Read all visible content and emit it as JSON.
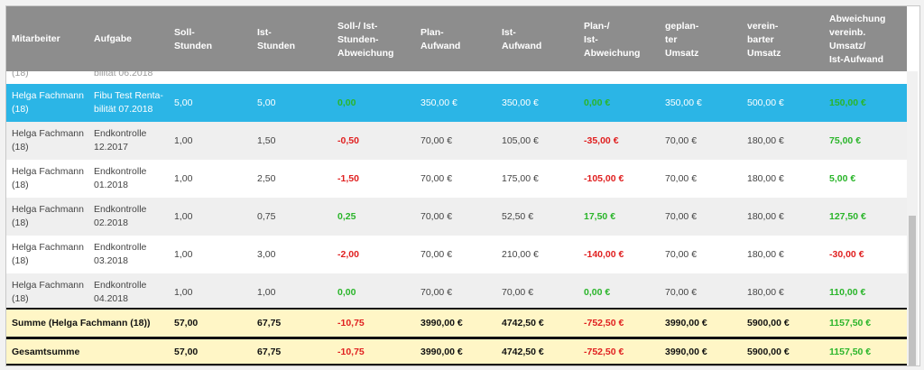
{
  "headers": [
    "Mitarbeiter",
    "Aufgabe",
    "Soll-\nStunden",
    "Ist-\nStunden",
    "Soll-/ Ist-\nStunden-\nAbweichung",
    "Plan-\nAufwand",
    "Ist-\nAufwand",
    "Plan-/\nIst-\nAbweichung",
    "geplan-\nter\nUmsatz",
    "verein-\nbarter\nUmsatz",
    "Abweichung\nvereinb.\nUmsatz/\nIst-Aufwand"
  ],
  "partial_row": {
    "mitarbeiter": "(18)",
    "aufgabe": "bilität 06.2018"
  },
  "rows": [
    {
      "mitarbeiter": "Helga Fachmann\n(18)",
      "aufgabe": "Fibu Test Renta-\nbilität 07.2018",
      "soll": "5,00",
      "ist": "5,00",
      "abw": "0,00",
      "plan": "350,00 €",
      "ist_aufwand": "350,00 €",
      "plan_abw": "0,00 €",
      "gepl_umsatz": "350,00 €",
      "ver_umsatz": "500,00 €",
      "abw_umsatz": "150,00 €",
      "selected": true,
      "abw_sign": "pos",
      "plan_abw_sign": "pos",
      "abw_umsatz_sign": "pos"
    },
    {
      "mitarbeiter": "Helga Fachmann\n(18)",
      "aufgabe": "Endkontrolle\n12.2017",
      "soll": "1,00",
      "ist": "1,50",
      "abw": "-0,50",
      "plan": "70,00 €",
      "ist_aufwand": "105,00 €",
      "plan_abw": "-35,00 €",
      "gepl_umsatz": "70,00 €",
      "ver_umsatz": "180,00 €",
      "abw_umsatz": "75,00 €",
      "abw_sign": "neg",
      "plan_abw_sign": "neg",
      "abw_umsatz_sign": "pos"
    },
    {
      "mitarbeiter": "Helga Fachmann\n(18)",
      "aufgabe": "Endkontrolle\n01.2018",
      "soll": "1,00",
      "ist": "2,50",
      "abw": "-1,50",
      "plan": "70,00 €",
      "ist_aufwand": "175,00 €",
      "plan_abw": "-105,00 €",
      "gepl_umsatz": "70,00 €",
      "ver_umsatz": "180,00 €",
      "abw_umsatz": "5,00 €",
      "abw_sign": "neg",
      "plan_abw_sign": "neg",
      "abw_umsatz_sign": "pos"
    },
    {
      "mitarbeiter": "Helga Fachmann\n(18)",
      "aufgabe": "Endkontrolle\n02.2018",
      "soll": "1,00",
      "ist": "0,75",
      "abw": "0,25",
      "plan": "70,00 €",
      "ist_aufwand": "52,50 €",
      "plan_abw": "17,50 €",
      "gepl_umsatz": "70,00 €",
      "ver_umsatz": "180,00 €",
      "abw_umsatz": "127,50 €",
      "abw_sign": "pos",
      "plan_abw_sign": "pos",
      "abw_umsatz_sign": "pos"
    },
    {
      "mitarbeiter": "Helga Fachmann\n(18)",
      "aufgabe": "Endkontrolle\n03.2018",
      "soll": "1,00",
      "ist": "3,00",
      "abw": "-2,00",
      "plan": "70,00 €",
      "ist_aufwand": "210,00 €",
      "plan_abw": "-140,00 €",
      "gepl_umsatz": "70,00 €",
      "ver_umsatz": "180,00 €",
      "abw_umsatz": "-30,00 €",
      "abw_sign": "neg",
      "plan_abw_sign": "neg",
      "abw_umsatz_sign": "neg"
    },
    {
      "mitarbeiter": "Helga Fachmann\n(18)",
      "aufgabe": "Endkontrolle\n04.2018",
      "soll": "1,00",
      "ist": "1,00",
      "abw": "0,00",
      "plan": "70,00 €",
      "ist_aufwand": "70,00 €",
      "plan_abw": "0,00 €",
      "gepl_umsatz": "70,00 €",
      "ver_umsatz": "180,00 €",
      "abw_umsatz": "110,00 €",
      "abw_sign": "pos",
      "plan_abw_sign": "pos",
      "abw_umsatz_sign": "pos"
    }
  ],
  "subtotal": {
    "label": "Summe (Helga Fachmann (18))",
    "soll": "57,00",
    "ist": "67,75",
    "abw": "-10,75",
    "plan": "3990,00 €",
    "ist_aufwand": "4742,50 €",
    "plan_abw": "-752,50 €",
    "gepl_umsatz": "3990,00 €",
    "ver_umsatz": "5900,00 €",
    "abw_umsatz": "1157,50 €"
  },
  "total": {
    "label": "Gesamtsumme",
    "soll": "57,00",
    "ist": "67,75",
    "abw": "-10,75",
    "plan": "3990,00 €",
    "ist_aufwand": "4742,50 €",
    "plan_abw": "-752,50 €",
    "gepl_umsatz": "3990,00 €",
    "ver_umsatz": "5900,00 €",
    "abw_umsatz": "1157,50 €"
  },
  "colors": {
    "header_bg": "#8d8d8d",
    "selected_bg": "#2bb5e6",
    "sum_bg": "#fff6c6",
    "negative": "#e02020",
    "positive": "#2ab52a"
  }
}
